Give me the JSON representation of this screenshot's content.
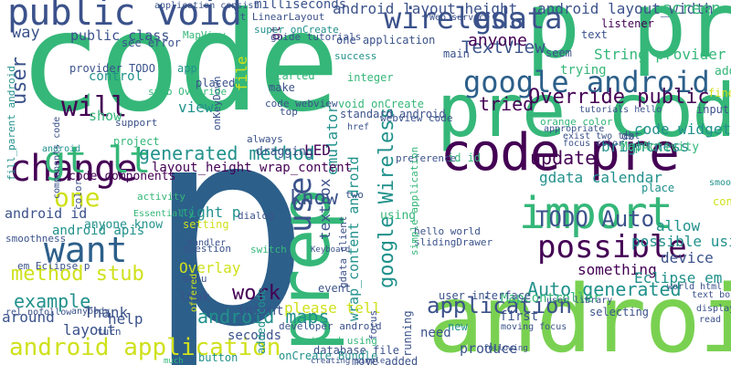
{
  "palette": {
    "dark_purple": "#440154",
    "indigo": "#3b528b",
    "steel_blue": "#2c5f8a",
    "teal": "#21918c",
    "green": "#35b779",
    "light_green": "#7ad151",
    "yellow": "#cfe11c",
    "gold": "#fde725"
  },
  "words": [
    {
      "text": "code",
      "color": "#35b779"
    },
    {
      "text": "p",
      "color": "#2c5f8a"
    },
    {
      "text": "pre code",
      "color": "#35b779"
    },
    {
      "text": "p pre",
      "color": "#35b779"
    },
    {
      "text": "android",
      "color": "#7ad151"
    },
    {
      "text": "public void",
      "color": "#3b528b"
    },
    {
      "text": "prep",
      "color": "#35b779"
    },
    {
      "text": "code pre",
      "color": "#440154"
    },
    {
      "text": "google android",
      "color": "#2c5f8a"
    },
    {
      "text": "change",
      "color": "#440154"
    },
    {
      "text": "want",
      "color": "#2c5f8a"
    },
    {
      "text": "import",
      "color": "#35b779"
    },
    {
      "text": "android application",
      "color": "#cfe11c"
    },
    {
      "text": "gt lt",
      "color": "#35b779"
    },
    {
      "text": "wireless",
      "color": "#3b528b"
    },
    {
      "text": "gdata",
      "color": "#3b528b"
    },
    {
      "text": "possible",
      "color": "#440154"
    },
    {
      "text": "TODO Auto",
      "color": "#3b528b"
    },
    {
      "text": "will",
      "color": "#440154"
    },
    {
      "text": "one",
      "color": "#cfe11c"
    },
    {
      "text": "example",
      "color": "#21918c"
    },
    {
      "text": "method stub",
      "color": "#cfe11c"
    },
    {
      "text": "work",
      "color": "#440154"
    },
    {
      "text": "use",
      "color": "#3b528b"
    },
    {
      "text": "know",
      "color": "#3b528b"
    },
    {
      "text": "Override public",
      "color": "#440154"
    },
    {
      "text": "generated method",
      "color": "#21918c"
    },
    {
      "text": "Auto generated",
      "color": "#21918c"
    },
    {
      "text": "application",
      "color": "#3b528b"
    },
    {
      "text": "google Wireless",
      "color": "#21918c"
    },
    {
      "text": "wrap_content android",
      "color": "#21918c"
    },
    {
      "text": "android layout_height",
      "color": "#3b528b"
    },
    {
      "text": "android layout_width",
      "color": "#3b528b"
    },
    {
      "text": "android maps",
      "color": "#21918c"
    },
    {
      "text": "user",
      "color": "#3b528b"
    },
    {
      "text": "emulator",
      "color": "#21918c"
    },
    {
      "text": "screen",
      "color": "#35b779"
    },
    {
      "text": "String provider",
      "color": "#35b779"
    },
    {
      "text": "TextView",
      "color": "#3b528b"
    },
    {
      "text": "anyone",
      "color": "#440154"
    },
    {
      "text": "update",
      "color": "#440154"
    },
    {
      "text": "tried",
      "color": "#440154"
    },
    {
      "text": "device",
      "color": "#3b528b"
    },
    {
      "text": "allow",
      "color": "#21918c"
    },
    {
      "text": "brightness",
      "color": "#21918c"
    },
    {
      "text": "code widget",
      "color": "#21918c"
    },
    {
      "text": "gdata calendar",
      "color": "#21918c"
    },
    {
      "text": "possible using",
      "color": "#21918c"
    },
    {
      "text": "something",
      "color": "#440154"
    },
    {
      "text": "Eclipse em",
      "color": "#21918c"
    },
    {
      "text": "around",
      "color": "#3b528b"
    },
    {
      "text": "layout",
      "color": "#3b528b"
    },
    {
      "text": "help",
      "color": "#3b528b"
    },
    {
      "text": "Thank",
      "color": "#3b528b"
    },
    {
      "text": "please tell",
      "color": "#cfe11c"
    },
    {
      "text": "look",
      "color": "#3b528b"
    },
    {
      "text": "intent",
      "color": "#3b528b"
    },
    {
      "text": "seconds",
      "color": "#3b528b"
    },
    {
      "text": "MapController",
      "color": "#35b779"
    },
    {
      "text": "first",
      "color": "#3b528b"
    },
    {
      "text": "need",
      "color": "#3b528b"
    },
    {
      "text": "user interface",
      "color": "#3b528b"
    },
    {
      "text": "Overlay",
      "color": "#cfe11c"
    },
    {
      "text": "LED",
      "color": "#440154"
    },
    {
      "text": "layout_height wrap_content",
      "color": "#440154"
    },
    {
      "text": "code components",
      "color": "#440154"
    },
    {
      "text": "android id",
      "color": "#3b528b"
    },
    {
      "text": "android apis",
      "color": "#21918c"
    },
    {
      "text": "anyone know",
      "color": "#21918c"
    },
    {
      "text": "right p",
      "color": "#21918c"
    },
    {
      "text": "setting",
      "color": "#cfe11c"
    },
    {
      "text": "view",
      "color": "#21918c"
    },
    {
      "text": "show",
      "color": "#35b779"
    },
    {
      "text": "control",
      "color": "#21918c"
    },
    {
      "text": "public class",
      "color": "#3b528b"
    },
    {
      "text": "way",
      "color": "#3b528b"
    },
    {
      "text": "milliseconds",
      "color": "#3b528b"
    },
    {
      "text": "gt",
      "color": "#440154"
    },
    {
      "text": "file",
      "color": "#cfe11c"
    },
    {
      "text": "project",
      "color": "#35b779"
    },
    {
      "text": "id id",
      "color": "#35b779"
    },
    {
      "text": "make",
      "color": "#3b528b"
    },
    {
      "text": "started",
      "color": "#35b779"
    },
    {
      "text": "app",
      "color": "#21918c"
    },
    {
      "text": "placed",
      "color": "#3b528b"
    },
    {
      "text": "MapView",
      "color": "#35b779"
    },
    {
      "text": "see error",
      "color": "#3b528b"
    },
    {
      "text": "provider TODO",
      "color": "#3b528b"
    },
    {
      "text": "textbox",
      "color": "#3b528b"
    },
    {
      "text": "added code",
      "color": "#21918c"
    },
    {
      "text": "dragging",
      "color": "#3b528b"
    },
    {
      "text": "event",
      "color": "#3b528b"
    },
    {
      "text": "database file",
      "color": "#3b528b"
    },
    {
      "text": "onCreate Bundle",
      "color": "#21918c"
    },
    {
      "text": "move added",
      "color": "#3b528b"
    },
    {
      "text": "button",
      "color": "#21918c"
    },
    {
      "text": "produce",
      "color": "#3b528b"
    },
    {
      "text": "running",
      "color": "#3b528b"
    },
    {
      "text": "selecting",
      "color": "#3b528b"
    },
    {
      "text": "new",
      "color": "#21918c"
    },
    {
      "text": "standard android",
      "color": "#3b528b"
    },
    {
      "text": "void onCreate",
      "color": "#35b779"
    },
    {
      "text": "integer",
      "color": "#35b779"
    },
    {
      "text": "MapActivity",
      "color": "#35b779"
    },
    {
      "text": "trying",
      "color": "#35b779"
    },
    {
      "text": "seem",
      "color": "#3b528b"
    },
    {
      "text": "main",
      "color": "#3b528b"
    },
    {
      "text": "one application",
      "color": "#3b528b"
    },
    {
      "text": "listener",
      "color": "#440154"
    },
    {
      "text": "text",
      "color": "#3b528b"
    },
    {
      "text": "add",
      "color": "#35b779"
    },
    {
      "text": "fine",
      "color": "#cfe11c"
    },
    {
      "text": "input",
      "color": "#3b528b"
    },
    {
      "text": "db",
      "color": "#3b528b"
    },
    {
      "text": "place",
      "color": "#21918c"
    },
    {
      "text": "content",
      "color": "#cfe11c"
    },
    {
      "text": "preference",
      "color": "#3b528b"
    },
    {
      "text": "hello world",
      "color": "#3b528b"
    },
    {
      "text": "slidingDrawer",
      "color": "#3b528b"
    },
    {
      "text": "using",
      "color": "#35b779"
    },
    {
      "text": "focus",
      "color": "#3b528b"
    },
    {
      "text": "developer android",
      "color": "#3b528b"
    },
    {
      "text": "tried using",
      "color": "#35b779"
    },
    {
      "text": "two",
      "color": "#3b528b"
    },
    {
      "text": "gdata client",
      "color": "#3b528b"
    },
    {
      "text": "simple application",
      "color": "#35b779"
    },
    {
      "text": "dialog",
      "color": "#3b528b"
    },
    {
      "text": "switch",
      "color": "#35b779"
    },
    {
      "text": "menu",
      "color": "#3b528b"
    },
    {
      "text": "question",
      "color": "#3b528b"
    },
    {
      "text": "always",
      "color": "#3b528b"
    },
    {
      "text": "top",
      "color": "#3b528b"
    },
    {
      "text": "code webview",
      "color": "#3b528b"
    },
    {
      "text": "onKeyDown",
      "color": "#3b528b"
    },
    {
      "text": "lt LinearLayout",
      "color": "#3b528b"
    },
    {
      "text": "guide tutorials",
      "color": "#3b528b"
    },
    {
      "text": "super onCreate",
      "color": "#21918c"
    },
    {
      "text": "application consist",
      "color": "#3b528b"
    },
    {
      "text": "Web service",
      "color": "#3b528b"
    },
    {
      "text": "stub Override",
      "color": "#35b779"
    },
    {
      "text": "href",
      "color": "#3b528b"
    },
    {
      "text": "webview code",
      "color": "#3b528b"
    },
    {
      "text": "success",
      "color": "#21918c"
    },
    {
      "text": "orange color",
      "color": "#35b779"
    },
    {
      "text": "appropriate",
      "color": "#3b528b"
    },
    {
      "text": "exist two text",
      "color": "#3b528b"
    },
    {
      "text": "focus color",
      "color": "#3b528b"
    },
    {
      "text": "tutorials hello",
      "color": "#3b528b"
    },
    {
      "text": "world html",
      "color": "#3b528b"
    },
    {
      "text": "text box",
      "color": "#3b528b"
    },
    {
      "text": "displaying",
      "color": "#3b528b"
    },
    {
      "text": "read",
      "color": "#3b528b"
    },
    {
      "text": "smooth",
      "color": "#21918c"
    },
    {
      "text": "support",
      "color": "#3b528b"
    },
    {
      "text": "android",
      "color": "#21918c"
    },
    {
      "text": "components code",
      "color": "#3b528b"
    },
    {
      "text": "fill_parent android",
      "color": "#21918c"
    },
    {
      "text": "em Eclipse p",
      "color": "#3b528b"
    },
    {
      "text": "smoothness",
      "color": "#3b528b"
    },
    {
      "text": "rel nofollow",
      "color": "#3b528b"
    },
    {
      "text": "anybody",
      "color": "#3b528b"
    },
    {
      "text": "turn",
      "color": "#3b528b"
    },
    {
      "text": "much",
      "color": "#35b779"
    },
    {
      "text": "following",
      "color": "#3b528b"
    },
    {
      "text": "user library",
      "color": "#3b528b"
    },
    {
      "text": "moving focus",
      "color": "#3b528b"
    },
    {
      "text": "creating simple",
      "color": "#3b528b"
    },
    {
      "text": "offered",
      "color": "#cfe11c"
    },
    {
      "text": "color",
      "color": "#3b528b"
    },
    {
      "text": "activity",
      "color": "#35b779"
    },
    {
      "text": "Essentially",
      "color": "#35b779"
    },
    {
      "text": "handler",
      "color": "#3b528b"
    },
    {
      "text": "Keyboard",
      "color": "#3b528b"
    }
  ]
}
